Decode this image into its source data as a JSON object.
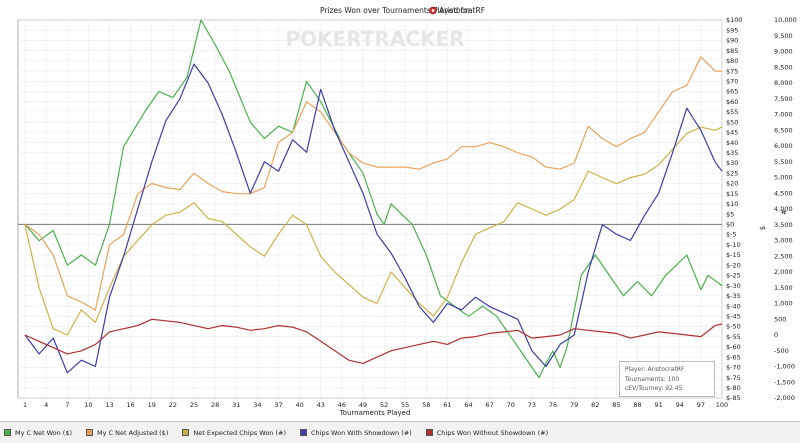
{
  "title": "Prizes Won over Tournaments Played for",
  "player": "AristocratRF",
  "watermark": "POKERTRACKER",
  "chart_data": {
    "type": "line",
    "xlabel": "Tournaments Played",
    "ylabel_left": "$",
    "ylabel_right": "#",
    "x_ticks": [
      1,
      4,
      7,
      10,
      13,
      16,
      19,
      22,
      25,
      28,
      31,
      34,
      37,
      40,
      43,
      46,
      49,
      52,
      55,
      58,
      61,
      64,
      67,
      70,
      73,
      76,
      79,
      82,
      85,
      88,
      91,
      94,
      97,
      100
    ],
    "ylim_dollars": [
      -85,
      100
    ],
    "ylim_chips": [
      -2000,
      10000
    ],
    "y_ticks_dollars": [
      100,
      95,
      90,
      85,
      80,
      75,
      70,
      65,
      60,
      55,
      50,
      45,
      40,
      35,
      30,
      25,
      20,
      15,
      10,
      5,
      0,
      -5,
      -10,
      -15,
      -20,
      -25,
      -30,
      -35,
      -40,
      -45,
      -50,
      -55,
      -60,
      -65,
      -70,
      -75,
      -80,
      -85
    ],
    "y_tick_labels_dollars": [
      "$100",
      "$95",
      "$90",
      "$85",
      "$80",
      "$75",
      "$70",
      "$65",
      "$60",
      "$55",
      "$50",
      "$45",
      "$40",
      "$35",
      "$30",
      "$25",
      "$20",
      "$15",
      "$10",
      "$5",
      "$0",
      "$-5",
      "$-10",
      "$-15",
      "$-20",
      "$-25",
      "$-30",
      "$-35",
      "$-40",
      "$-45",
      "$-50",
      "$-55",
      "$-60",
      "$-65",
      "$-70",
      "$-75",
      "$-80",
      "$-85"
    ],
    "y_ticks_chips": [
      10000,
      9500,
      9000,
      8500,
      8000,
      7500,
      7000,
      6500,
      6000,
      5500,
      5000,
      4500,
      4000,
      3500,
      3000,
      2500,
      2000,
      1500,
      1000,
      500,
      0,
      -500,
      -1000,
      -1500,
      -2000
    ],
    "y_tick_labels_chips": [
      "10,000",
      "9,500",
      "9,000",
      "8,500",
      "8,000",
      "7,500",
      "7,000",
      "6,500",
      "6,000",
      "5,500",
      "5,000",
      "4,500",
      "4,000",
      "3,500",
      "3,000",
      "2,500",
      "2,000",
      "1,500",
      "1,000",
      "500",
      "0",
      "-500",
      "-1,000",
      "-1,500",
      "-2,000"
    ],
    "series": [
      {
        "name": "My C Net Won ($)",
        "axis": "left",
        "color": "#4caf50",
        "points": [
          [
            1,
            0
          ],
          [
            3,
            -8
          ],
          [
            5,
            -3
          ],
          [
            7,
            -20
          ],
          [
            9,
            -15
          ],
          [
            11,
            -20
          ],
          [
            13,
            0
          ],
          [
            15,
            38
          ],
          [
            18,
            55
          ],
          [
            20,
            65
          ],
          [
            22,
            62
          ],
          [
            24,
            72
          ],
          [
            26,
            100
          ],
          [
            28,
            88
          ],
          [
            30,
            75
          ],
          [
            33,
            50
          ],
          [
            35,
            42
          ],
          [
            37,
            48
          ],
          [
            39,
            45
          ],
          [
            41,
            70
          ],
          [
            43,
            60
          ],
          [
            46,
            40
          ],
          [
            49,
            25
          ],
          [
            51,
            5
          ],
          [
            52,
            0
          ],
          [
            53,
            10
          ],
          [
            56,
            0
          ],
          [
            58,
            -15
          ],
          [
            60,
            -35
          ],
          [
            62,
            -40
          ],
          [
            64,
            -45
          ],
          [
            66,
            -40
          ],
          [
            68,
            -45
          ],
          [
            70,
            -55
          ],
          [
            72,
            -65
          ],
          [
            74,
            -75
          ],
          [
            75,
            -68
          ],
          [
            76,
            -62
          ],
          [
            77,
            -70
          ],
          [
            78,
            -60
          ],
          [
            80,
            -25
          ],
          [
            82,
            -15
          ],
          [
            84,
            -25
          ],
          [
            86,
            -35
          ],
          [
            88,
            -28
          ],
          [
            90,
            -35
          ],
          [
            92,
            -25
          ],
          [
            95,
            -15
          ],
          [
            97,
            -32
          ],
          [
            98,
            -25
          ],
          [
            100,
            -30
          ]
        ]
      },
      {
        "name": "My C Net Adjusted ($)",
        "axis": "left",
        "color": "#e8a45c",
        "points": [
          [
            1,
            0
          ],
          [
            3,
            -5
          ],
          [
            5,
            -15
          ],
          [
            7,
            -35
          ],
          [
            9,
            -38
          ],
          [
            11,
            -42
          ],
          [
            13,
            -10
          ],
          [
            15,
            -5
          ],
          [
            17,
            15
          ],
          [
            19,
            20
          ],
          [
            21,
            18
          ],
          [
            23,
            17
          ],
          [
            25,
            25
          ],
          [
            27,
            20
          ],
          [
            29,
            16
          ],
          [
            31,
            15
          ],
          [
            33,
            15
          ],
          [
            35,
            18
          ],
          [
            37,
            40
          ],
          [
            39,
            45
          ],
          [
            41,
            60
          ],
          [
            43,
            55
          ],
          [
            45,
            45
          ],
          [
            47,
            35
          ],
          [
            49,
            30
          ],
          [
            51,
            28
          ],
          [
            53,
            28
          ],
          [
            55,
            28
          ],
          [
            57,
            27
          ],
          [
            59,
            30
          ],
          [
            61,
            32
          ],
          [
            63,
            38
          ],
          [
            65,
            38
          ],
          [
            67,
            40
          ],
          [
            69,
            38
          ],
          [
            71,
            35
          ],
          [
            73,
            33
          ],
          [
            75,
            28
          ],
          [
            77,
            27
          ],
          [
            79,
            30
          ],
          [
            81,
            48
          ],
          [
            83,
            42
          ],
          [
            85,
            38
          ],
          [
            87,
            42
          ],
          [
            89,
            45
          ],
          [
            91,
            55
          ],
          [
            93,
            65
          ],
          [
            95,
            68
          ],
          [
            97,
            82
          ],
          [
            99,
            75
          ],
          [
            100,
            75
          ]
        ]
      },
      {
        "name": "Net Expected Chips Won (#)",
        "axis": "right",
        "color": "#c9b447",
        "points": [
          [
            1,
            3500
          ],
          [
            3,
            1500
          ],
          [
            5,
            200
          ],
          [
            7,
            0
          ],
          [
            9,
            800
          ],
          [
            11,
            400
          ],
          [
            13,
            1500
          ],
          [
            15,
            2500
          ],
          [
            17,
            3000
          ],
          [
            19,
            3500
          ],
          [
            21,
            3800
          ],
          [
            23,
            3900
          ],
          [
            25,
            4200
          ],
          [
            27,
            3700
          ],
          [
            29,
            3600
          ],
          [
            31,
            3200
          ],
          [
            33,
            2800
          ],
          [
            35,
            2500
          ],
          [
            37,
            3200
          ],
          [
            39,
            3800
          ],
          [
            41,
            3500
          ],
          [
            43,
            2500
          ],
          [
            45,
            2000
          ],
          [
            47,
            1600
          ],
          [
            49,
            1200
          ],
          [
            51,
            1000
          ],
          [
            53,
            2000
          ],
          [
            55,
            1500
          ],
          [
            57,
            1000
          ],
          [
            59,
            600
          ],
          [
            61,
            1200
          ],
          [
            63,
            2300
          ],
          [
            65,
            3200
          ],
          [
            67,
            3400
          ],
          [
            69,
            3600
          ],
          [
            71,
            4200
          ],
          [
            73,
            4000
          ],
          [
            75,
            3800
          ],
          [
            77,
            4000
          ],
          [
            79,
            4300
          ],
          [
            81,
            5200
          ],
          [
            83,
            5000
          ],
          [
            85,
            4800
          ],
          [
            87,
            5000
          ],
          [
            89,
            5100
          ],
          [
            91,
            5400
          ],
          [
            93,
            5900
          ],
          [
            95,
            6400
          ],
          [
            97,
            6600
          ],
          [
            99,
            6500
          ],
          [
            100,
            6600
          ]
        ]
      },
      {
        "name": "Chips Won With Showdown (#)",
        "axis": "right",
        "color": "#3c3caa",
        "points": [
          [
            1,
            0
          ],
          [
            3,
            -600
          ],
          [
            5,
            -100
          ],
          [
            7,
            -1200
          ],
          [
            9,
            -800
          ],
          [
            11,
            -1000
          ],
          [
            13,
            1200
          ],
          [
            15,
            2500
          ],
          [
            17,
            4000
          ],
          [
            19,
            5500
          ],
          [
            21,
            6800
          ],
          [
            23,
            7500
          ],
          [
            25,
            8600
          ],
          [
            27,
            8000
          ],
          [
            29,
            7000
          ],
          [
            31,
            5800
          ],
          [
            33,
            4500
          ],
          [
            35,
            5500
          ],
          [
            37,
            5200
          ],
          [
            39,
            6200
          ],
          [
            41,
            5800
          ],
          [
            43,
            7800
          ],
          [
            45,
            6500
          ],
          [
            47,
            5500
          ],
          [
            49,
            4500
          ],
          [
            51,
            3200
          ],
          [
            53,
            2600
          ],
          [
            55,
            1800
          ],
          [
            57,
            900
          ],
          [
            59,
            400
          ],
          [
            61,
            1000
          ],
          [
            63,
            800
          ],
          [
            65,
            1200
          ],
          [
            67,
            900
          ],
          [
            69,
            700
          ],
          [
            71,
            500
          ],
          [
            73,
            -500
          ],
          [
            75,
            -1000
          ],
          [
            77,
            -300
          ],
          [
            79,
            0
          ],
          [
            81,
            2000
          ],
          [
            83,
            3500
          ],
          [
            85,
            3200
          ],
          [
            87,
            3000
          ],
          [
            89,
            3800
          ],
          [
            91,
            4500
          ],
          [
            93,
            5800
          ],
          [
            95,
            7200
          ],
          [
            97,
            6500
          ],
          [
            99,
            5500
          ],
          [
            100,
            5200
          ]
        ]
      },
      {
        "name": "Chips Won Without Showdown (#)",
        "axis": "right",
        "color": "#b03030",
        "points": [
          [
            1,
            0
          ],
          [
            3,
            -200
          ],
          [
            5,
            -400
          ],
          [
            7,
            -600
          ],
          [
            9,
            -500
          ],
          [
            11,
            -300
          ],
          [
            13,
            100
          ],
          [
            15,
            200
          ],
          [
            17,
            300
          ],
          [
            19,
            500
          ],
          [
            21,
            450
          ],
          [
            23,
            400
          ],
          [
            25,
            300
          ],
          [
            27,
            200
          ],
          [
            29,
            300
          ],
          [
            31,
            250
          ],
          [
            33,
            150
          ],
          [
            35,
            200
          ],
          [
            37,
            300
          ],
          [
            39,
            250
          ],
          [
            41,
            100
          ],
          [
            43,
            -200
          ],
          [
            45,
            -500
          ],
          [
            47,
            -800
          ],
          [
            49,
            -900
          ],
          [
            51,
            -700
          ],
          [
            53,
            -500
          ],
          [
            55,
            -400
          ],
          [
            57,
            -300
          ],
          [
            59,
            -200
          ],
          [
            61,
            -300
          ],
          [
            63,
            -100
          ],
          [
            65,
            -50
          ],
          [
            67,
            50
          ],
          [
            69,
            100
          ],
          [
            71,
            150
          ],
          [
            73,
            -100
          ],
          [
            75,
            -50
          ],
          [
            77,
            0
          ],
          [
            79,
            200
          ],
          [
            81,
            150
          ],
          [
            83,
            100
          ],
          [
            85,
            50
          ],
          [
            87,
            -100
          ],
          [
            89,
            0
          ],
          [
            91,
            100
          ],
          [
            93,
            50
          ],
          [
            95,
            0
          ],
          [
            97,
            -50
          ],
          [
            99,
            300
          ],
          [
            100,
            350
          ]
        ]
      }
    ]
  },
  "legend": {
    "items": [
      {
        "label": "My C Net Won ($)",
        "color": "#4caf50"
      },
      {
        "label": "My C Net Adjusted ($)",
        "color": "#e8a45c"
      },
      {
        "label": "Net Expected Chips Won (#)",
        "color": "#c9b447"
      },
      {
        "label": "Chips Won With Showdown (#)",
        "color": "#3c3caa"
      },
      {
        "label": "Chips Won Without Showdown (#)",
        "color": "#b03030"
      }
    ]
  },
  "infobox": {
    "player_line": "Player: AristocratRF",
    "tournaments_line": "Tournaments: 100",
    "cev_line": "cEV/Tourney: 92.45"
  }
}
